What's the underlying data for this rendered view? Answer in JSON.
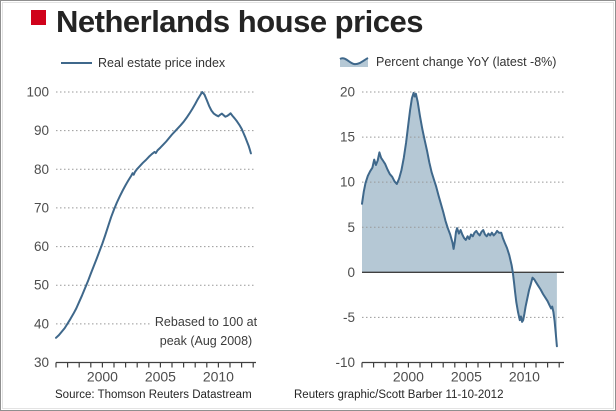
{
  "header": {
    "title": "Netherlands house prices",
    "bullet_color": "#d0021b"
  },
  "charts": {
    "left": {
      "legend": "Real estate price index",
      "annotation_line1": "Rebased to 100 at",
      "annotation_line2": "peak (Aug 2008)"
    },
    "right": {
      "legend": "Percent change YoY (latest -8%)"
    }
  },
  "footer": {
    "source": "Source: Thomson Reuters Datastream",
    "credit": "Reuters graphic/Scott Barber 11-10-2012"
  },
  "colors": {
    "accent_red": "#d0021b",
    "line_blue": "#3f688b",
    "area_fill": "#b5c8d5",
    "grid_gray": "#999999",
    "axis_dark": "#404040"
  },
  "chart_data": [
    {
      "type": "line",
      "title": "Real estate price index",
      "xlabel": "",
      "ylabel": "",
      "ylim": [
        30,
        100
      ],
      "xlim": [
        1996,
        2013
      ],
      "yticks": [
        30,
        40,
        50,
        60,
        70,
        80,
        90,
        100
      ],
      "xticks_labeled": [
        2000,
        2005,
        2010
      ],
      "grid": "dotted-horizontal",
      "legend_position": "top-left",
      "annotation": "Rebased to 100 at peak (Aug 2008)",
      "colors": {
        "line": "#3f688b"
      },
      "x": [
        1996.0,
        1996.25,
        1996.5,
        1996.75,
        1997.0,
        1997.25,
        1997.5,
        1997.75,
        1998.0,
        1998.25,
        1998.5,
        1998.75,
        1999.0,
        1999.25,
        1999.5,
        1999.75,
        2000.0,
        2000.25,
        2000.5,
        2000.75,
        2001.0,
        2001.25,
        2001.5,
        2001.75,
        2002.0,
        2002.25,
        2002.5,
        2002.6,
        2002.7,
        2002.8,
        2003.0,
        2003.25,
        2003.5,
        2003.75,
        2004.0,
        2004.25,
        2004.5,
        2004.6,
        2004.75,
        2005.0,
        2005.25,
        2005.5,
        2005.75,
        2006.0,
        2006.25,
        2006.5,
        2006.75,
        2007.0,
        2007.25,
        2007.5,
        2007.75,
        2008.0,
        2008.2,
        2008.4,
        2008.6,
        2008.8,
        2009.0,
        2009.2,
        2009.4,
        2009.6,
        2009.8,
        2010.0,
        2010.15,
        2010.3,
        2010.45,
        2010.6,
        2010.75,
        2010.9,
        2011.05,
        2011.2,
        2011.4,
        2011.6,
        2011.8,
        2012.0,
        2012.15,
        2012.3,
        2012.45,
        2012.6,
        2012.7,
        2012.8
      ],
      "values": [
        36.4,
        37.1,
        38.0,
        38.9,
        40.1,
        41.3,
        42.6,
        44.0,
        45.7,
        47.4,
        49.2,
        51.0,
        53.0,
        54.9,
        56.8,
        58.8,
        60.8,
        63.0,
        65.3,
        67.6,
        69.6,
        71.4,
        73.0,
        74.5,
        75.9,
        77.2,
        78.4,
        79.0,
        78.6,
        79.3,
        80.1,
        80.9,
        81.7,
        82.4,
        83.2,
        83.9,
        84.5,
        84.2,
        84.9,
        85.6,
        86.4,
        87.2,
        88.1,
        89.0,
        89.8,
        90.6,
        91.4,
        92.3,
        93.3,
        94.4,
        95.6,
        96.9,
        98.0,
        99.0,
        100.0,
        99.3,
        97.9,
        96.4,
        95.2,
        94.4,
        94.0,
        93.7,
        94.1,
        94.4,
        94.0,
        93.6,
        93.8,
        94.1,
        94.5,
        93.9,
        93.2,
        92.4,
        91.5,
        90.5,
        89.5,
        88.4,
        87.3,
        86.1,
        85.2,
        84.1
      ]
    },
    {
      "type": "area",
      "title": "Percent change YoY (latest -8%)",
      "xlabel": "",
      "ylabel": "",
      "ylim": [
        -10,
        20
      ],
      "xlim": [
        1996,
        2013
      ],
      "baseline": 0,
      "yticks": [
        -10,
        -5,
        0,
        5,
        10,
        15,
        20
      ],
      "xticks_labeled": [
        2000,
        2005,
        2010
      ],
      "grid": "dotted-horizontal",
      "legend_position": "top-left",
      "latest_value": -8,
      "colors": {
        "line": "#3f688b",
        "fill": "#b5c8d5"
      },
      "x": [
        1996.0,
        1996.15,
        1996.3,
        1996.5,
        1996.7,
        1996.9,
        1997.05,
        1997.2,
        1997.35,
        1997.5,
        1997.65,
        1997.8,
        1998.0,
        1998.2,
        1998.4,
        1998.6,
        1998.8,
        1999.0,
        1999.2,
        1999.4,
        1999.6,
        1999.8,
        2000.0,
        2000.15,
        2000.3,
        2000.45,
        2000.55,
        2000.65,
        2000.8,
        2001.0,
        2001.2,
        2001.4,
        2001.6,
        2001.8,
        2002.0,
        2002.2,
        2002.4,
        2002.6,
        2002.8,
        2003.0,
        2003.2,
        2003.4,
        2003.6,
        2003.8,
        2003.9,
        2004.0,
        2004.1,
        2004.2,
        2004.35,
        2004.5,
        2004.65,
        2004.8,
        2004.95,
        2005.1,
        2005.25,
        2005.4,
        2005.55,
        2005.7,
        2005.85,
        2006.0,
        2006.15,
        2006.3,
        2006.45,
        2006.6,
        2006.75,
        2006.9,
        2007.05,
        2007.2,
        2007.35,
        2007.5,
        2007.65,
        2007.8,
        2008.0,
        2008.15,
        2008.3,
        2008.5,
        2008.7,
        2008.9,
        2009.0,
        2009.1,
        2009.2,
        2009.3,
        2009.45,
        2009.6,
        2009.7,
        2009.8,
        2009.9,
        2010.0,
        2010.1,
        2010.25,
        2010.4,
        2010.55,
        2010.7,
        2010.85,
        2011.0,
        2011.2,
        2011.4,
        2011.6,
        2011.8,
        2012.0,
        2012.15,
        2012.3,
        2012.4,
        2012.5,
        2012.6,
        2012.7,
        2012.8
      ],
      "values": [
        7.6,
        8.9,
        9.9,
        10.7,
        11.2,
        11.6,
        12.5,
        11.9,
        12.4,
        13.3,
        12.7,
        12.4,
        12.0,
        11.4,
        10.9,
        10.6,
        10.1,
        9.8,
        10.4,
        11.3,
        12.7,
        14.4,
        16.5,
        18.0,
        19.3,
        19.9,
        19.5,
        19.8,
        18.9,
        17.3,
        15.9,
        14.7,
        13.5,
        12.2,
        11.1,
        10.3,
        9.5,
        8.5,
        7.6,
        6.7,
        5.7,
        4.9,
        4.2,
        3.3,
        2.6,
        3.4,
        4.5,
        4.9,
        4.3,
        4.7,
        4.2,
        3.8,
        3.6,
        4.0,
        3.7,
        4.2,
        4.0,
        4.4,
        4.6,
        4.3,
        4.1,
        4.5,
        4.7,
        4.2,
        4.0,
        4.3,
        4.1,
        4.4,
        4.1,
        4.3,
        4.6,
        4.4,
        4.4,
        3.8,
        3.3,
        2.7,
        1.9,
        0.8,
        0.0,
        -1.1,
        -2.2,
        -3.3,
        -4.4,
        -5.3,
        -4.9,
        -5.5,
        -5.3,
        -4.6,
        -3.8,
        -2.9,
        -2.0,
        -1.3,
        -0.6,
        -0.8,
        -1.1,
        -1.5,
        -1.9,
        -2.4,
        -2.8,
        -3.2,
        -3.6,
        -4.0,
        -3.8,
        -4.4,
        -5.4,
        -6.7,
        -8.2
      ]
    }
  ]
}
